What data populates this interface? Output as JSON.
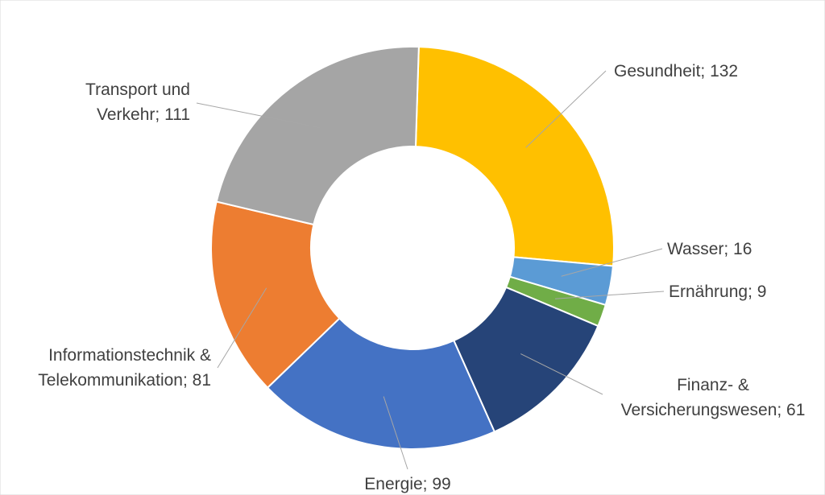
{
  "chart_data": {
    "type": "donut",
    "title": "",
    "legend": "none",
    "categories": [
      "Gesundheit",
      "Wasser",
      "Ernährung",
      "Finanz- & Versicherungswesen",
      "Energie",
      "Informationstechnik & Telekommunikation",
      "Transport und Verkehr"
    ],
    "values": [
      132,
      16,
      9,
      61,
      99,
      81,
      111
    ],
    "colors": [
      "#FFC000",
      "#5B9BD5",
      "#70AD47",
      "#264478",
      "#4472C4",
      "#ED7D31",
      "#A5A5A5"
    ],
    "labels": [
      [
        "Gesundheit; 132"
      ],
      [
        "Wasser; 16"
      ],
      [
        "Ernährung; 9"
      ],
      [
        "Finanz- &",
        "Versicherungswesen; 61"
      ],
      [
        "Energie; 99"
      ],
      [
        "Informationstechnik &",
        "Telekommunikation; 81"
      ],
      [
        "Transport und",
        "Verkehr; 111"
      ]
    ]
  }
}
